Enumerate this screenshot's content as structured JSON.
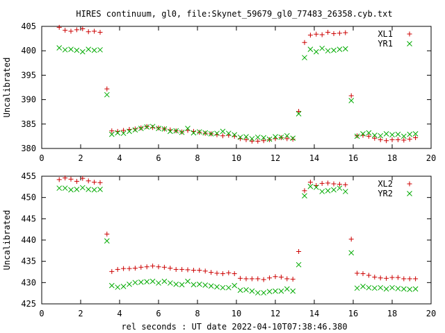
{
  "chart_data": {
    "title": "HIRES continuum, gl0, file:Skynet_59679_gl0_77483_26358.cyb.txt",
    "xlabel": "rel seconds : UT date 2022-04-10T07:38:46.380",
    "panels": [
      {
        "type": "scatter",
        "ylabel": "Uncalibrated",
        "xlim": [
          0,
          20
        ],
        "ylim": [
          380,
          405
        ],
        "xticks": [
          0,
          2,
          4,
          6,
          8,
          10,
          12,
          14,
          16,
          18,
          20
        ],
        "yticks": [
          380,
          385,
          390,
          395,
          400,
          405
        ],
        "legend": "top-right",
        "series": [
          {
            "name": "XL1",
            "marker": "plus",
            "color": "#cc0000",
            "x": [
              0.9,
              1.2,
              1.5,
              1.8,
              2.1,
              2.4,
              2.7,
              3.0,
              3.35,
              3.6,
              3.9,
              4.2,
              4.5,
              4.8,
              5.1,
              5.4,
              5.7,
              6.0,
              6.3,
              6.6,
              6.9,
              7.2,
              7.5,
              7.8,
              8.1,
              8.4,
              8.7,
              9.0,
              9.3,
              9.6,
              9.9,
              10.2,
              10.5,
              10.8,
              11.1,
              11.4,
              11.7,
              12.0,
              12.3,
              12.6,
              12.9,
              13.2,
              13.5,
              13.8,
              14.1,
              14.4,
              14.7,
              15.0,
              15.3,
              15.6,
              15.9,
              16.2,
              16.5,
              16.8,
              17.1,
              17.4,
              17.7,
              18.0,
              18.3,
              18.6,
              18.9,
              19.2
            ],
            "values": [
              404.8,
              404.2,
              404.0,
              404.3,
              404.5,
              403.9,
              404.0,
              403.8,
              392.2,
              383.6,
              383.5,
              383.7,
              383.9,
              384.0,
              384.2,
              384.5,
              384.3,
              384.2,
              384.0,
              383.8,
              383.6,
              383.4,
              383.7,
              383.5,
              383.3,
              383.1,
              383.0,
              382.8,
              382.6,
              382.7,
              382.5,
              382.0,
              381.8,
              381.5,
              381.5,
              381.6,
              381.8,
              382.0,
              382.2,
              382.0,
              381.9,
              387.6,
              401.7,
              403.2,
              403.4,
              403.3,
              403.8,
              403.5,
              403.6,
              403.7,
              390.8,
              382.6,
              382.7,
              382.5,
              382.1,
              381.8,
              381.6,
              381.8,
              381.8,
              381.7,
              381.9,
              382.2
            ]
          },
          {
            "name": "YR1",
            "marker": "cross",
            "color": "#00aa00",
            "x": [
              0.9,
              1.2,
              1.5,
              1.8,
              2.1,
              2.4,
              2.7,
              3.0,
              3.35,
              3.6,
              3.9,
              4.2,
              4.5,
              4.8,
              5.1,
              5.4,
              5.7,
              6.0,
              6.3,
              6.6,
              6.9,
              7.2,
              7.5,
              7.8,
              8.1,
              8.4,
              8.7,
              9.0,
              9.3,
              9.6,
              9.9,
              10.2,
              10.5,
              10.8,
              11.1,
              11.4,
              11.7,
              12.0,
              12.3,
              12.6,
              12.9,
              13.2,
              13.5,
              13.8,
              14.1,
              14.4,
              14.7,
              15.0,
              15.3,
              15.6,
              15.9,
              16.2,
              16.5,
              16.8,
              17.1,
              17.4,
              17.7,
              18.0,
              18.3,
              18.6,
              18.9,
              19.2
            ],
            "values": [
              400.6,
              400.2,
              400.3,
              400.1,
              399.8,
              400.3,
              400.1,
              400.2,
              391.0,
              382.9,
              383.2,
              383.1,
              383.5,
              383.8,
              384.1,
              384.4,
              384.5,
              384.1,
              384.0,
              383.5,
              383.6,
              383.3,
              384.1,
              383.2,
              383.4,
              383.2,
              383.0,
              383.1,
              383.5,
              383.1,
              382.8,
              382.3,
              382.4,
              382.0,
              382.3,
              382.2,
              381.9,
              382.4,
              382.3,
              382.6,
              382.1,
              387.1,
              398.6,
              400.3,
              399.8,
              400.5,
              400.0,
              400.1,
              400.3,
              400.4,
              389.8,
              382.5,
              383.0,
              383.2,
              382.7,
              382.6,
              383.0,
              382.8,
              382.9,
              382.5,
              382.9,
              383.0
            ]
          }
        ]
      },
      {
        "type": "scatter",
        "ylabel": "Uncalibrated",
        "xlim": [
          0,
          20
        ],
        "ylim": [
          425,
          455
        ],
        "xticks": [
          0,
          2,
          4,
          6,
          8,
          10,
          12,
          14,
          16,
          18,
          20
        ],
        "yticks": [
          425,
          430,
          435,
          440,
          445,
          450,
          455
        ],
        "legend": "top-right",
        "series": [
          {
            "name": "XL2",
            "marker": "plus",
            "color": "#cc0000",
            "x": [
              0.9,
              1.2,
              1.5,
              1.8,
              2.1,
              2.4,
              2.7,
              3.0,
              3.35,
              3.6,
              3.9,
              4.2,
              4.5,
              4.8,
              5.1,
              5.4,
              5.7,
              6.0,
              6.3,
              6.6,
              6.9,
              7.2,
              7.5,
              7.8,
              8.1,
              8.4,
              8.7,
              9.0,
              9.3,
              9.6,
              9.9,
              10.2,
              10.5,
              10.8,
              11.1,
              11.4,
              11.7,
              12.0,
              12.3,
              12.6,
              12.9,
              13.2,
              13.5,
              13.8,
              14.1,
              14.4,
              14.7,
              15.0,
              15.3,
              15.6,
              15.9,
              16.2,
              16.5,
              16.8,
              17.1,
              17.4,
              17.7,
              18.0,
              18.3,
              18.6,
              18.9,
              19.2
            ],
            "values": [
              454.2,
              454.6,
              454.3,
              453.8,
              454.5,
              453.9,
              453.6,
              453.5,
              441.4,
              432.6,
              433.1,
              433.3,
              433.3,
              433.4,
              433.6,
              433.7,
              433.9,
              433.7,
              433.6,
              433.4,
              433.1,
              433.1,
              433.0,
              432.9,
              432.9,
              432.7,
              432.4,
              432.2,
              432.1,
              432.3,
              432.1,
              431.0,
              430.9,
              430.9,
              430.9,
              430.7,
              431.1,
              431.4,
              431.3,
              430.9,
              430.8,
              437.3,
              451.6,
              453.6,
              452.8,
              453.3,
              453.4,
              453.2,
              453.1,
              453.0,
              440.2,
              432.2,
              432.1,
              431.7,
              431.3,
              431.1,
              431.0,
              431.2,
              431.2,
              430.9,
              430.9,
              430.9
            ]
          },
          {
            "name": "YR2",
            "marker": "cross",
            "color": "#00aa00",
            "x": [
              0.9,
              1.2,
              1.5,
              1.8,
              2.1,
              2.4,
              2.7,
              3.0,
              3.35,
              3.6,
              3.9,
              4.2,
              4.5,
              4.8,
              5.1,
              5.4,
              5.7,
              6.0,
              6.3,
              6.6,
              6.9,
              7.2,
              7.5,
              7.8,
              8.1,
              8.4,
              8.7,
              9.0,
              9.3,
              9.6,
              9.9,
              10.2,
              10.5,
              10.8,
              11.1,
              11.4,
              11.7,
              12.0,
              12.3,
              12.6,
              12.9,
              13.2,
              13.5,
              13.8,
              14.1,
              14.4,
              14.7,
              15.0,
              15.3,
              15.6,
              15.9,
              16.2,
              16.5,
              16.8,
              17.1,
              17.4,
              17.7,
              18.0,
              18.3,
              18.6,
              18.9,
              19.2
            ],
            "values": [
              452.2,
              452.2,
              451.8,
              451.9,
              452.3,
              451.9,
              451.8,
              451.9,
              439.8,
              429.3,
              428.9,
              429.1,
              429.6,
              430.0,
              430.1,
              430.2,
              430.3,
              429.9,
              430.3,
              429.9,
              429.6,
              429.5,
              430.3,
              429.5,
              429.6,
              429.4,
              429.2,
              429.0,
              428.8,
              428.8,
              429.3,
              428.2,
              428.3,
              428.0,
              427.6,
              427.6,
              427.9,
              428.0,
              428.0,
              428.5,
              428.0,
              434.2,
              450.4,
              452.6,
              452.4,
              451.4,
              451.6,
              451.8,
              452.2,
              451.4,
              437.0,
              428.7,
              429.1,
              428.8,
              428.7,
              428.8,
              428.5,
              428.8,
              428.6,
              428.5,
              428.4,
              428.5
            ]
          }
        ]
      }
    ]
  }
}
